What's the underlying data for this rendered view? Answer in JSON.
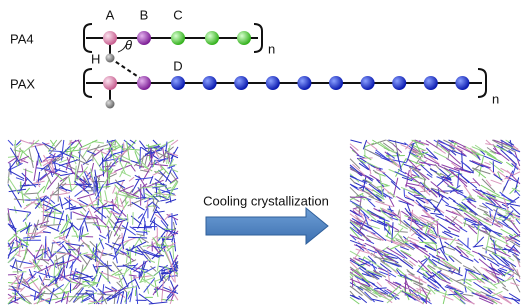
{
  "labels": {
    "pa4": "PA4",
    "pax": "PAX",
    "a": "A",
    "b": "B",
    "c": "C",
    "d": "D",
    "h": "H",
    "theta": "θ",
    "n1": "n",
    "n2": "n"
  },
  "arrow_label": "Cooling crystallization"
}
